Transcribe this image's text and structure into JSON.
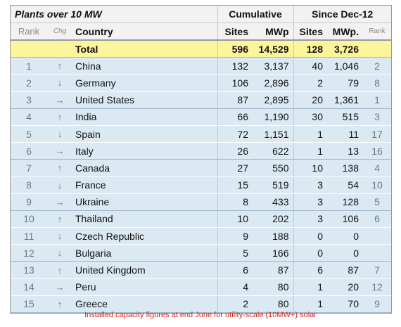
{
  "table": {
    "title": "Plants over 10 MW",
    "group_cumulative": "Cumulative",
    "group_since": "Since Dec-12",
    "col_rank": "Rank",
    "col_chg": "Chg",
    "col_country": "Country",
    "col_sites": "Sites",
    "col_mwp": "MWp",
    "col_since_sites": "Sites",
    "col_since_mwp": "MWp.",
    "col_since_rank": "Rank",
    "total": {
      "label": "Total",
      "sites": "596",
      "mwp": "14,529",
      "since_sites": "128",
      "since_mwp": "3,726"
    },
    "rows": [
      {
        "rank": "1",
        "chg": "↑",
        "country": "China",
        "sites": "132",
        "mwp": "3,137",
        "since_sites": "40",
        "since_mwp": "1,046",
        "since_rank": "2"
      },
      {
        "rank": "2",
        "chg": "↓",
        "country": "Germany",
        "sites": "106",
        "mwp": "2,896",
        "since_sites": "2",
        "since_mwp": "79",
        "since_rank": "8"
      },
      {
        "rank": "3",
        "chg": "→",
        "country": "United States",
        "sites": "87",
        "mwp": "2,895",
        "since_sites": "20",
        "since_mwp": "1,361",
        "since_rank": "1"
      },
      {
        "rank": "4",
        "chg": "↑",
        "country": "India",
        "sites": "66",
        "mwp": "1,190",
        "since_sites": "30",
        "since_mwp": "515",
        "since_rank": "3"
      },
      {
        "rank": "5",
        "chg": "↓",
        "country": "Spain",
        "sites": "72",
        "mwp": "1,151",
        "since_sites": "1",
        "since_mwp": "11",
        "since_rank": "17"
      },
      {
        "rank": "6",
        "chg": "→",
        "country": "Italy",
        "sites": "26",
        "mwp": "622",
        "since_sites": "1",
        "since_mwp": "13",
        "since_rank": "16"
      },
      {
        "rank": "7",
        "chg": "↑",
        "country": "Canada",
        "sites": "27",
        "mwp": "550",
        "since_sites": "10",
        "since_mwp": "138",
        "since_rank": "4"
      },
      {
        "rank": "8",
        "chg": "↓",
        "country": "France",
        "sites": "15",
        "mwp": "519",
        "since_sites": "3",
        "since_mwp": "54",
        "since_rank": "10"
      },
      {
        "rank": "9",
        "chg": "→",
        "country": "Ukraine",
        "sites": "8",
        "mwp": "433",
        "since_sites": "3",
        "since_mwp": "128",
        "since_rank": "5"
      },
      {
        "rank": "10",
        "chg": "↑",
        "country": "Thailand",
        "sites": "10",
        "mwp": "202",
        "since_sites": "3",
        "since_mwp": "106",
        "since_rank": "6"
      },
      {
        "rank": "11",
        "chg": "↓",
        "country": "Czech Republic",
        "sites": "9",
        "mwp": "188",
        "since_sites": "0",
        "since_mwp": "0",
        "since_rank": ""
      },
      {
        "rank": "12",
        "chg": "↓",
        "country": "Bulgaria",
        "sites": "5",
        "mwp": "166",
        "since_sites": "0",
        "since_mwp": "0",
        "since_rank": ""
      },
      {
        "rank": "13",
        "chg": "↑",
        "country": "United Kingdom",
        "sites": "6",
        "mwp": "87",
        "since_sites": "6",
        "since_mwp": "87",
        "since_rank": "7"
      },
      {
        "rank": "14",
        "chg": "→",
        "country": "Peru",
        "sites": "4",
        "mwp": "80",
        "since_sites": "1",
        "since_mwp": "20",
        "since_rank": "12"
      },
      {
        "rank": "15",
        "chg": "↑",
        "country": "Greece",
        "sites": "2",
        "mwp": "80",
        "since_sites": "1",
        "since_mwp": "70",
        "since_rank": "9"
      }
    ]
  },
  "caption": "Installed capacity figures at end June for utility-scale (10MW+) solar",
  "colors": {
    "total_row": "#fdf59b",
    "data_row": "#dbe9f3",
    "caption": "#d0261f"
  }
}
